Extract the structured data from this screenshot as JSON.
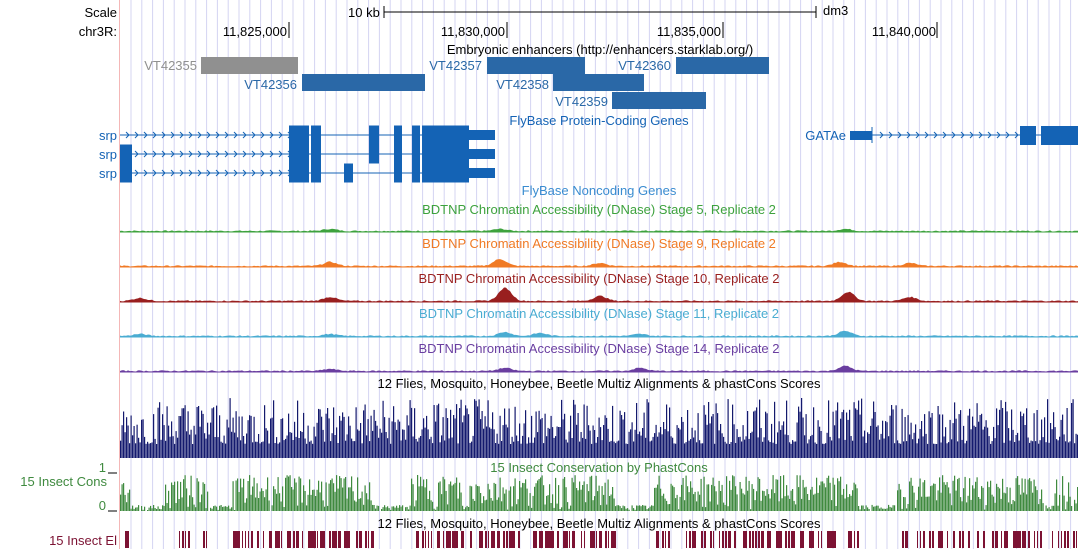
{
  "ruler": {
    "scale_label": "Scale",
    "scale_value": "10 kb",
    "assembly": "dm3",
    "chrom_label": "chr3R:",
    "ticks": [
      "11,825,000",
      "11,830,000",
      "11,835,000",
      "11,840,000"
    ]
  },
  "tracks": {
    "enhancers": {
      "title": "Embryonic enhancers (http://enhancers.starklab.org/)",
      "items": [
        {
          "name": "VT42355",
          "color": "#909090"
        },
        {
          "name": "VT42356",
          "color": "#2a68a7"
        },
        {
          "name": "VT42357",
          "color": "#2a68a7"
        },
        {
          "name": "VT42358",
          "color": "#2a68a7"
        },
        {
          "name": "VT42359",
          "color": "#2a68a7"
        },
        {
          "name": "VT42360",
          "color": "#2a68a7"
        }
      ]
    },
    "protein_genes": {
      "title": "FlyBase Protein-Coding Genes",
      "color": "#1463b5",
      "genes": [
        "srp",
        "srp",
        "srp",
        "GATAe"
      ]
    },
    "noncoding": {
      "title": "FlyBase Noncoding Genes",
      "color": "#3a8cd0"
    },
    "dnase": [
      {
        "title": "BDTNP Chromatin Accessibility (DNase) Stage 5, Replicate 2",
        "color": "#3da23d"
      },
      {
        "title": "BDTNP Chromatin Accessibility (DNase) Stage 9, Replicate 2",
        "color": "#f07a25"
      },
      {
        "title": "BDTNP Chromatin Accessibility (DNase) Stage 10, Replicate 2",
        "color": "#991f1f"
      },
      {
        "title": "BDTNP Chromatin Accessibility (DNase) Stage 11, Replicate 2",
        "color": "#4aacd2"
      },
      {
        "title": "BDTNP Chromatin Accessibility (DNase) Stage 14, Replicate 2",
        "color": "#6a3ea0"
      }
    ],
    "multiz": {
      "title": "12 Flies, Mosquito, Honeybee, Beetle Multiz Alignments & phastCons Scores",
      "color": "#141a6e"
    },
    "phastcons": {
      "title": "15 Insect Conservation by PhastCons",
      "side_label": "15 Insect Cons",
      "ymax": "1",
      "ymin": "0",
      "color": "#3f8a3f"
    },
    "elements": {
      "title": "12 Flies, Mosquito, Honeybee, Beetle Multiz Alignments & phastCons Scores",
      "side_label": "15 Insect El",
      "color": "#7c1233"
    }
  }
}
